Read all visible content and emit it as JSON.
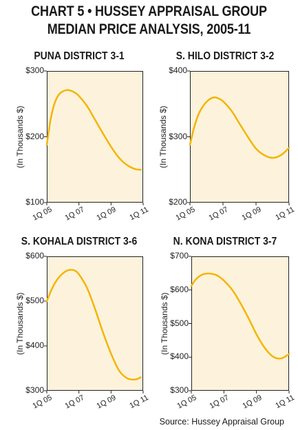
{
  "title": {
    "line1": "CHART 5 • HUSSEY APPRAISAL GROUP",
    "line2": "MEDIAN PRICE ANALYSIS, 2005-11"
  },
  "source": "Source: Hussey Appraisal Group",
  "colors": {
    "line": "#f5b400",
    "panel_bg": "#fdf3dc",
    "axis": "#222222"
  },
  "chart_data": [
    {
      "type": "line",
      "title": "PUNA DISTRICT  3-1",
      "ylabel": "(In Thousands $)",
      "ylim": [
        100,
        300
      ],
      "yticks": [
        "$100",
        "$200",
        "$300"
      ],
      "xticks": [
        "1Q 05",
        "1Q 07",
        "1Q 09",
        "1Q 11"
      ],
      "grid": false,
      "series": [
        {
          "x": [
            2005.0,
            2005.25,
            2005.5,
            2005.75,
            2006.0,
            2006.25,
            2006.5,
            2006.75,
            2007.0,
            2007.5,
            2008.0,
            2008.5,
            2009.0,
            2009.5,
            2010.0,
            2010.5,
            2010.85
          ],
          "values": [
            188,
            228,
            252,
            264,
            269,
            271,
            270,
            267,
            262,
            247,
            226,
            205,
            185,
            168,
            157,
            151,
            150
          ]
        }
      ]
    },
    {
      "type": "line",
      "title": "S. HILO DISTRICT  3-2",
      "ylabel": "(In Thousands $)",
      "ylim": [
        200,
        400
      ],
      "yticks": [
        "$200",
        "$300",
        "$400"
      ],
      "xticks": [
        "1Q 05",
        "1Q 07",
        "1Q 09",
        "1Q 11"
      ],
      "grid": false,
      "series": [
        {
          "x": [
            2005.0,
            2005.25,
            2005.5,
            2005.75,
            2006.0,
            2006.25,
            2006.5,
            2006.75,
            2007.0,
            2007.5,
            2008.0,
            2008.5,
            2009.0,
            2009.5,
            2010.0,
            2010.5,
            2011.0
          ],
          "values": [
            288,
            314,
            333,
            345,
            353,
            358,
            360,
            358,
            354,
            340,
            320,
            300,
            282,
            272,
            268,
            272,
            283
          ]
        }
      ]
    },
    {
      "type": "line",
      "title": "S. KOHALA DISTRICT 3-6",
      "ylabel": "(In Thousands $)",
      "ylim": [
        300,
        600
      ],
      "yticks": [
        "$300",
        "$400",
        "$500",
        "$600"
      ],
      "xticks": [
        "1Q 05",
        "1Q 07",
        "1Q 09",
        "1Q 11"
      ],
      "grid": false,
      "series": [
        {
          "x": [
            2005.0,
            2005.25,
            2005.5,
            2005.75,
            2006.0,
            2006.25,
            2006.5,
            2006.75,
            2007.0,
            2007.5,
            2008.0,
            2008.5,
            2009.0,
            2009.5,
            2010.0,
            2010.5,
            2010.85
          ],
          "values": [
            500,
            522,
            540,
            553,
            562,
            568,
            570,
            568,
            560,
            530,
            483,
            430,
            383,
            345,
            328,
            325,
            330
          ]
        }
      ]
    },
    {
      "type": "line",
      "title": "N. KONA DISTRICT 3-7",
      "ylabel": "(In Thousands $)",
      "ylim": [
        300,
        700
      ],
      "yticks": [
        "$300",
        "$400",
        "$500",
        "$600",
        "$700"
      ],
      "xticks": [
        "1Q 05",
        "1Q 07",
        "1Q 09",
        "1Q 11"
      ],
      "grid": false,
      "series": [
        {
          "x": [
            2005.0,
            2005.25,
            2005.5,
            2005.75,
            2006.0,
            2006.25,
            2006.5,
            2006.75,
            2007.0,
            2007.5,
            2008.0,
            2008.5,
            2009.0,
            2009.5,
            2010.0,
            2010.5,
            2011.0
          ],
          "values": [
            612,
            630,
            641,
            647,
            649,
            648,
            645,
            638,
            628,
            601,
            562,
            517,
            468,
            428,
            402,
            396,
            409
          ]
        }
      ]
    }
  ]
}
